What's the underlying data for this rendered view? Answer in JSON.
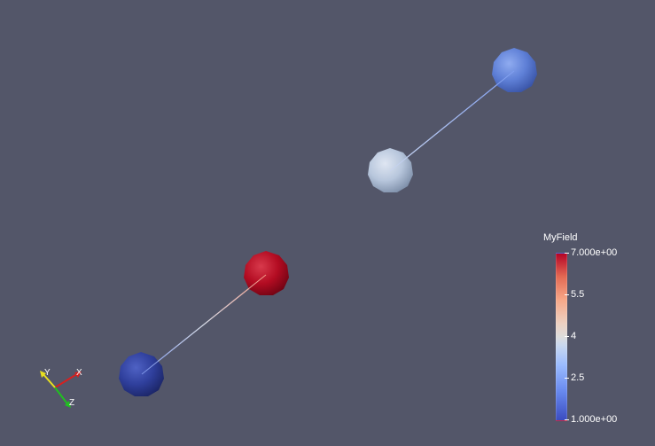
{
  "colorbar": {
    "title": "MyField",
    "ticks": [
      {
        "label": "7.000e+00",
        "value": 7.0
      },
      {
        "label": "5.5",
        "value": 5.5
      },
      {
        "label": "4",
        "value": 4.0
      },
      {
        "label": "2.5",
        "value": 2.5
      },
      {
        "label": "1.000e+00",
        "value": 1.0
      }
    ],
    "range": [
      1.0,
      7.0
    ],
    "colors": {
      "low": "#3b4cc0",
      "mid": "#dddddd",
      "high": "#b40426"
    }
  },
  "axes": {
    "x_label": "X",
    "y_label": "Y",
    "z_label": "Z",
    "x_color": "#d62020",
    "y_color": "#e8e020",
    "z_color": "#20c020"
  },
  "scene": {
    "background": "#535669",
    "spheres": [
      {
        "name": "sphere-top-right",
        "value": 2.2,
        "color": "#5e7fd6"
      },
      {
        "name": "sphere-middle",
        "value": 3.9,
        "color": "#b7c6dc"
      },
      {
        "name": "sphere-red",
        "value": 7.0,
        "color": "#b30c22"
      },
      {
        "name": "sphere-bottom-left",
        "value": 1.0,
        "color": "#2f3f9c"
      }
    ]
  }
}
